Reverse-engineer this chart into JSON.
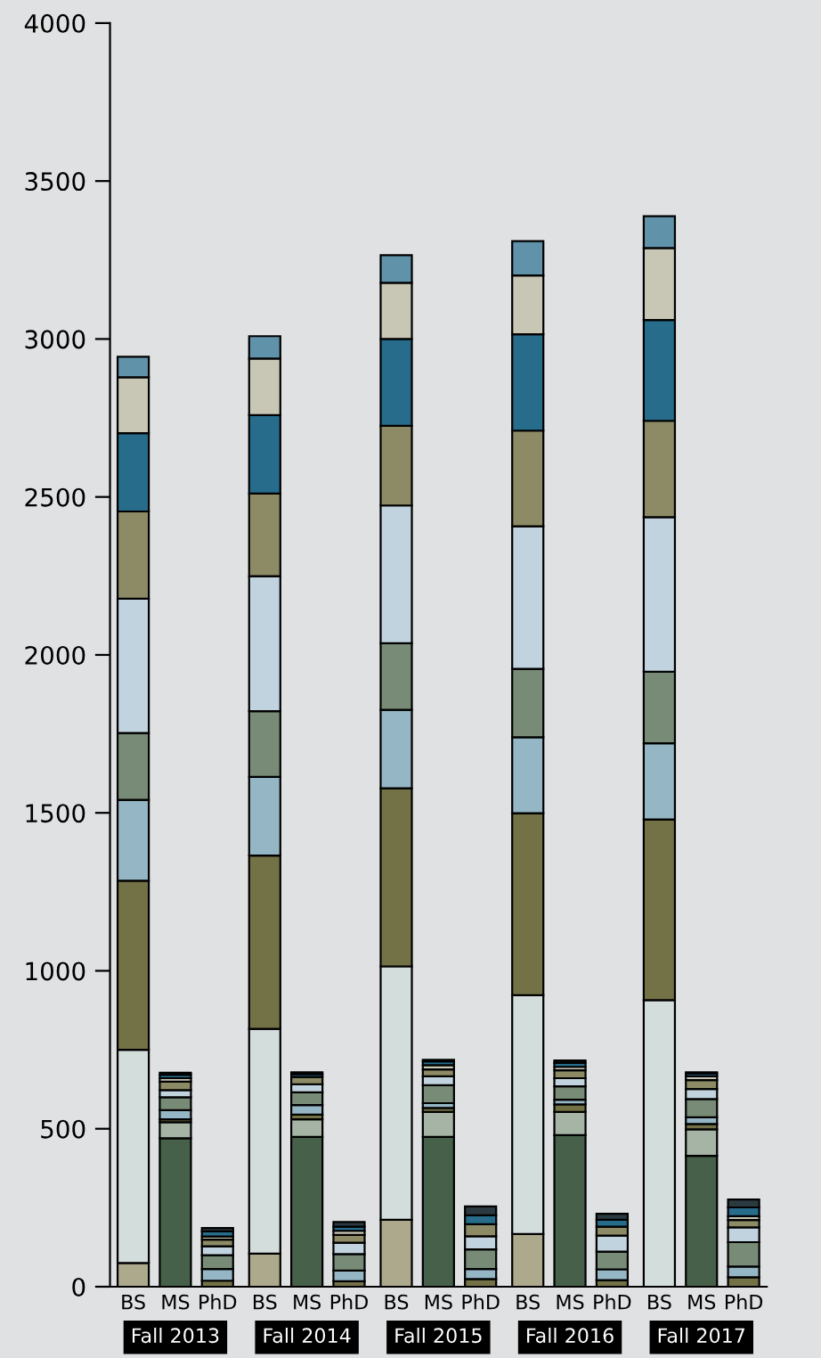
{
  "chart_data": {
    "type": "bar",
    "stacked": true,
    "categories": [
      "BS",
      "MS",
      "PhD",
      "BS",
      "MS",
      "PhD",
      "BS",
      "MS",
      "PhD",
      "BS",
      "MS",
      "PhD",
      "BS",
      "MS",
      "PhD"
    ],
    "annotations": [
      "Fall 2013",
      "Fall 2014",
      "Fall 2015",
      "Fall 2016",
      "Fall 2017"
    ],
    "ylim": [
      0,
      4000
    ],
    "yticks": [
      0,
      500,
      1000,
      1500,
      2000,
      2500,
      3000,
      3500,
      4000
    ],
    "grid": false,
    "legend": false,
    "series": [
      {
        "color": "#aca98c",
        "values": [
          75,
          null,
          null,
          105,
          null,
          null,
          212,
          null,
          null,
          167,
          null,
          null,
          null,
          null,
          null
        ]
      },
      {
        "color": "#d3dddc",
        "values": [
          675,
          null,
          null,
          711,
          null,
          null,
          802,
          null,
          null,
          756,
          null,
          null,
          907,
          null,
          null
        ]
      },
      {
        "color": "#47604a",
        "values": [
          null,
          470,
          null,
          null,
          474,
          null,
          null,
          474,
          null,
          null,
          480,
          null,
          null,
          414,
          null
        ]
      },
      {
        "color": "#a5b4a4",
        "values": [
          null,
          51,
          null,
          null,
          56,
          null,
          null,
          79,
          null,
          null,
          73,
          null,
          null,
          84,
          null
        ]
      },
      {
        "color": "#737146",
        "values": [
          535,
          9,
          19,
          549,
          15,
          17,
          564,
          13,
          24,
          576,
          24,
          21,
          572,
          17,
          30
        ]
      },
      {
        "color": "#95b6c4",
        "values": [
          256,
          29,
          37,
          249,
          30,
          34,
          248,
          15,
          32,
          240,
          15,
          34,
          241,
          21,
          34
        ]
      },
      {
        "color": "#778b76",
        "values": [
          212,
          41,
          44,
          208,
          40,
          52,
          211,
          57,
          62,
          217,
          42,
          56,
          227,
          58,
          77
        ]
      },
      {
        "color": "#c1d3de",
        "values": [
          425,
          22,
          28,
          427,
          26,
          36,
          436,
          28,
          42,
          451,
          26,
          51,
          489,
          32,
          47
        ]
      },
      {
        "color": "#8c8b66",
        "values": [
          276,
          27,
          21,
          262,
          23,
          25,
          252,
          22,
          38,
          303,
          25,
          28,
          305,
          28,
          23
        ]
      },
      {
        "color": "#276c8b",
        "values": [
          248,
          null,
          null,
          248,
          null,
          null,
          275,
          null,
          null,
          305,
          null,
          null,
          319,
          null,
          null
        ]
      },
      {
        "color": "#c8c7b5",
        "values": [
          177,
          11,
          10,
          179,
          null,
          13,
          178,
          13,
          null,
          186,
          11,
          null,
          228,
          12,
          12
        ]
      },
      {
        "color": "#276c8b",
        "values": [
          null,
          11,
          16,
          null,
          9,
          13,
          null,
          12,
          28,
          null,
          13,
          22,
          null,
          9,
          28
        ]
      },
      {
        "color": "#6093aa",
        "values": [
          65,
          null,
          null,
          71,
          null,
          null,
          87,
          null,
          null,
          109,
          null,
          null,
          101,
          null,
          null
        ]
      },
      {
        "color": "#2a3a40",
        "values": [
          null,
          6,
          11,
          null,
          6,
          15,
          null,
          5,
          28,
          null,
          7,
          19,
          null,
          4,
          25
        ]
      }
    ]
  }
}
